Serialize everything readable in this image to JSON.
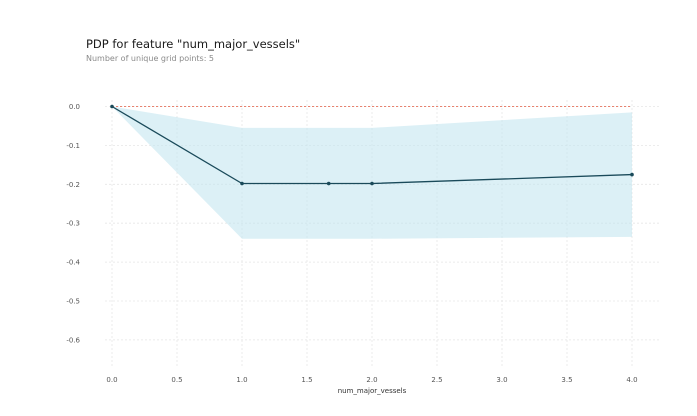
{
  "chart_data": {
    "type": "line",
    "title": "PDP for feature \"num_major_vessels\"",
    "subtitle": "Number of unique grid points: 5",
    "xlabel": "num_major_vessels",
    "ylabel": "",
    "xlim": [
      -0.1,
      4.2
    ],
    "ylim": [
      -0.67,
      0.01
    ],
    "x_ticks": [
      "0.0",
      "0.5",
      "1.0",
      "1.5",
      "2.0",
      "2.5",
      "3.0",
      "3.5",
      "4.0"
    ],
    "y_ticks": [
      "0.0",
      "-0.1",
      "-0.2",
      "-0.3",
      "-0.4",
      "-0.5",
      "-0.6"
    ],
    "grid": true,
    "reference_line": {
      "y": 0.0,
      "color": "#e8826f",
      "style": "dashed"
    },
    "series": [
      {
        "values": [
          {
            "x": 0.0,
            "y": 0.0
          },
          {
            "x": 1.0,
            "y": -0.198
          },
          {
            "x": 1.667,
            "y": -0.198
          },
          {
            "x": 2.0,
            "y": -0.198
          },
          {
            "x": 4.0,
            "y": -0.175
          }
        ],
        "color": "#1a4a5a"
      }
    ],
    "band": {
      "x": [
        0.0,
        1.0,
        1.667,
        2.0,
        4.0
      ],
      "upper": [
        0.0,
        -0.055,
        -0.055,
        -0.055,
        -0.015
      ],
      "lower": [
        0.0,
        -0.34,
        -0.34,
        -0.34,
        -0.335
      ],
      "color": "#bfe3ee"
    }
  }
}
